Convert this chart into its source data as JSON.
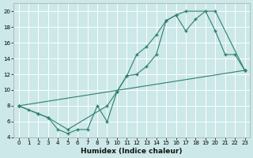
{
  "xlabel": "Humidex (Indice chaleur)",
  "bg_color": "#cce8e8",
  "grid_color": "#ffffff",
  "line_color": "#2e7f6e",
  "xlim": [
    -0.5,
    23.5
  ],
  "ylim": [
    4,
    21
  ],
  "xticks": [
    0,
    1,
    2,
    3,
    4,
    5,
    6,
    7,
    8,
    9,
    10,
    11,
    12,
    13,
    14,
    15,
    16,
    17,
    18,
    19,
    20,
    21,
    22,
    23
  ],
  "yticks": [
    4,
    6,
    8,
    10,
    12,
    14,
    16,
    18,
    20
  ],
  "line1_x": [
    0,
    1,
    2,
    3,
    4,
    5,
    6,
    7,
    8,
    9,
    10,
    11,
    12,
    13,
    14,
    15,
    16,
    17,
    18,
    19,
    20,
    21,
    22,
    23
  ],
  "line1_y": [
    8,
    7.5,
    7,
    6.5,
    5,
    4.5,
    5.0,
    5.0,
    8.0,
    6.0,
    9.8,
    11.8,
    14.5,
    15.5,
    17.0,
    18.8,
    19.5,
    17.5,
    19.0,
    20.0,
    17.5,
    14.5,
    14.5,
    12.5
  ],
  "line2_x": [
    0,
    2,
    3,
    5,
    9,
    10,
    11,
    12,
    13,
    14,
    15,
    16,
    17,
    20,
    23
  ],
  "line2_y": [
    8,
    7.0,
    6.5,
    5.0,
    8.0,
    9.8,
    11.8,
    12.0,
    13.0,
    14.5,
    18.8,
    19.5,
    20.0,
    20.0,
    12.5
  ],
  "line3_x": [
    0,
    23
  ],
  "line3_y": [
    8,
    12.5
  ]
}
